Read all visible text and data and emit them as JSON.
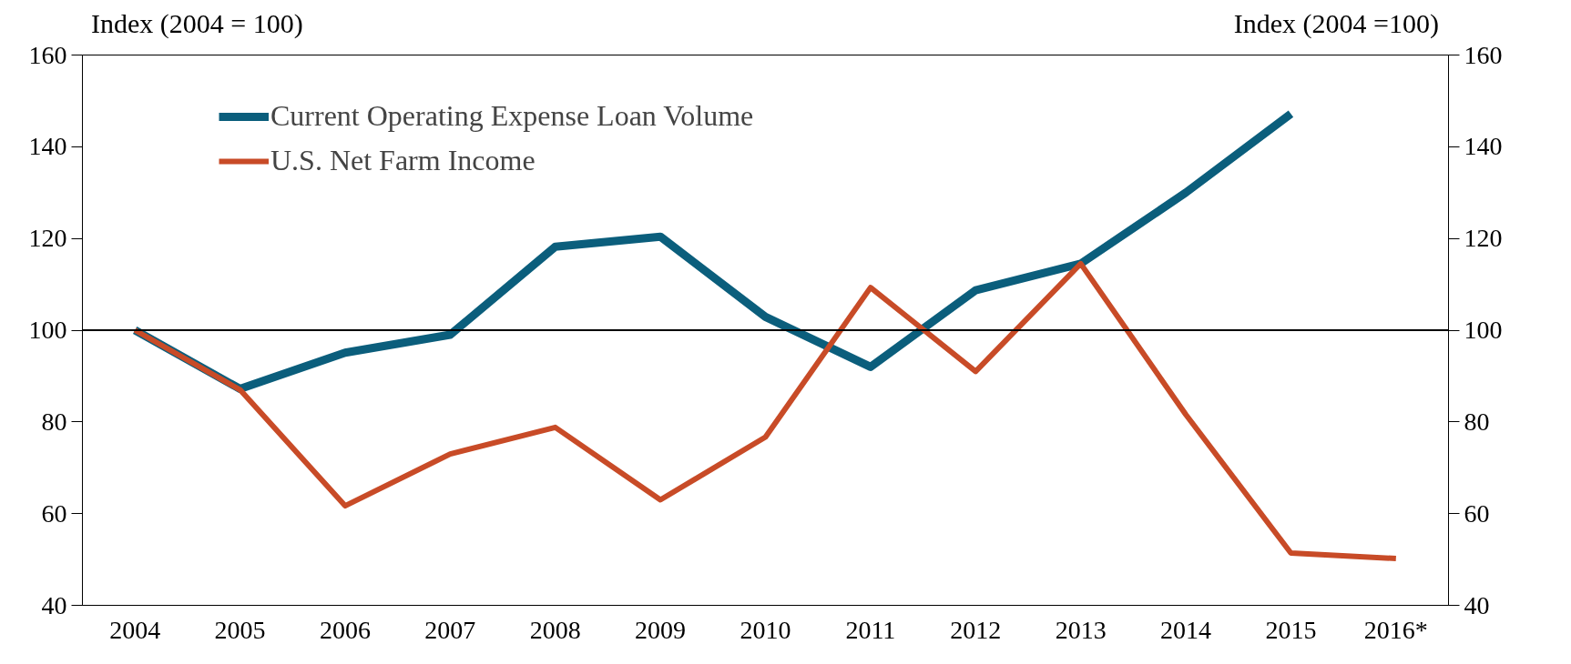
{
  "chart_data": {
    "type": "line",
    "ylabel": "Index (2004 = 100)",
    "y2label": "Index (2004 =100)",
    "categories": [
      "2004",
      "2005",
      "2006",
      "2007",
      "2008",
      "2009",
      "2010",
      "2011",
      "2012",
      "2013",
      "2014",
      "2015",
      "2016*"
    ],
    "series": [
      {
        "name": "Current Operating Expense Loan Volume",
        "color": "#0b5e7c",
        "values": [
          100,
          87.2,
          95.1,
          99,
          118.2,
          120.4,
          102.9,
          92,
          108.7,
          114.5,
          130,
          147.2,
          null
        ]
      },
      {
        "name": "U.S. Net Farm Income",
        "color": "#c84b27",
        "values": [
          100,
          87,
          61.7,
          73,
          78.8,
          63,
          76.7,
          109.3,
          91,
          114.5,
          81.6,
          51.4,
          50.2
        ]
      }
    ],
    "ylim": [
      40,
      160
    ],
    "yticks": [
      40,
      60,
      80,
      100,
      120,
      140,
      160
    ],
    "y2lim": [
      40,
      160
    ],
    "y2ticks": [
      40,
      60,
      80,
      100,
      120,
      140,
      160
    ],
    "ref_lines": [
      {
        "axis": "y",
        "value": 100,
        "color": "#000000",
        "line_style": "solid"
      }
    ],
    "grid": false,
    "legend": "top left",
    "line_style": "solid",
    "marker": "none"
  }
}
